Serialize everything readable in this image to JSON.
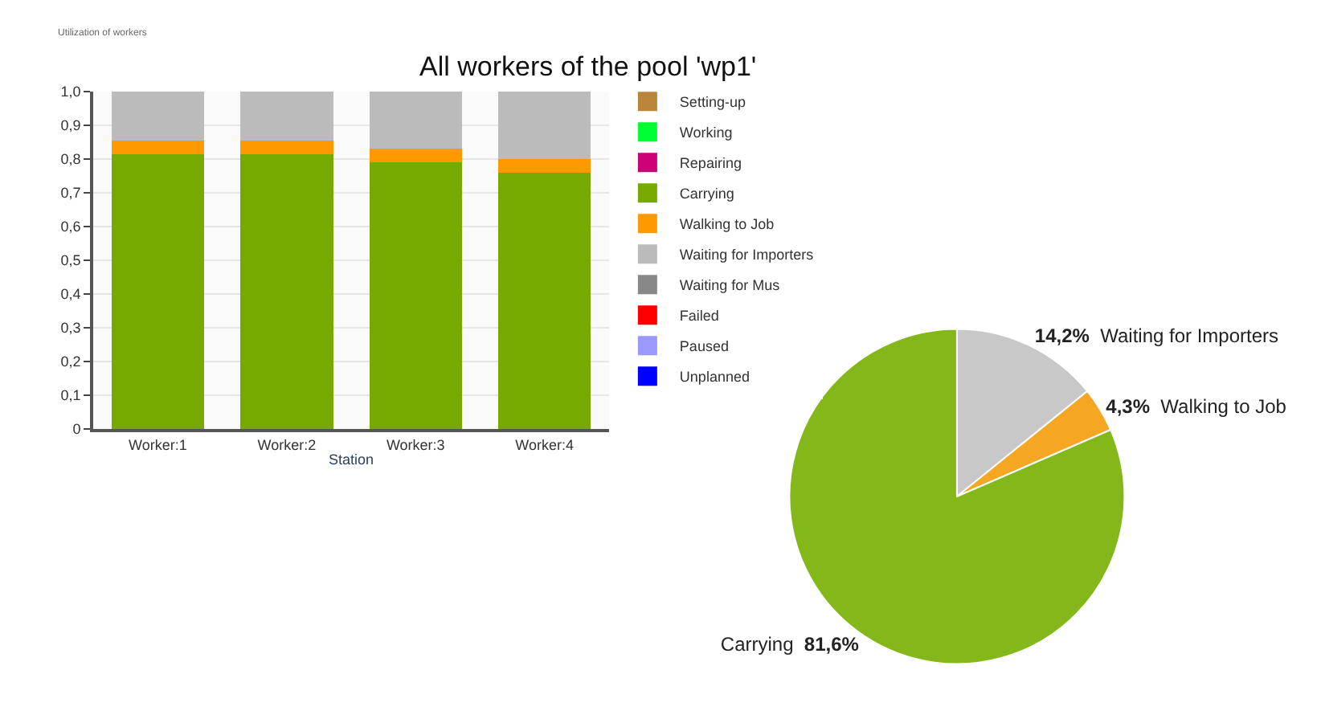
{
  "chart_data": [
    {
      "type": "bar",
      "title": "All workers of the pool 'wp1'",
      "xlabel": "Station",
      "annotations": [
        "Utilization of workers"
      ],
      "stacked": true,
      "grid": "y",
      "legend": "right",
      "categories": [
        "Worker:1",
        "Worker:2",
        "Worker:3",
        "Worker:4"
      ],
      "ylim": [
        0,
        1.0
      ],
      "yticks": [
        {
          "value": 0,
          "label": "0"
        },
        {
          "value": 0.1,
          "label": "0,1"
        },
        {
          "value": 0.2,
          "label": "0,2"
        },
        {
          "value": 0.3,
          "label": "0,3"
        },
        {
          "value": 0.4,
          "label": "0,4"
        },
        {
          "value": 0.5,
          "label": "0,5"
        },
        {
          "value": 0.6,
          "label": "0,6"
        },
        {
          "value": 0.7,
          "label": "0,7"
        },
        {
          "value": 0.8,
          "label": "0,8"
        },
        {
          "value": 0.9,
          "label": "0,9"
        },
        {
          "value": 1.0,
          "label": "1,0"
        }
      ],
      "series": [
        {
          "name": "Setting-up",
          "color": "#b8863b",
          "values": [
            0,
            0,
            0,
            0
          ]
        },
        {
          "name": "Working",
          "color": "#00ff33",
          "values": [
            0,
            0,
            0,
            0
          ]
        },
        {
          "name": "Repairing",
          "color": "#cc0077",
          "values": [
            0,
            0,
            0,
            0
          ]
        },
        {
          "name": "Carrying",
          "color": "#77aa00",
          "values": [
            0.815,
            0.815,
            0.79,
            0.76
          ]
        },
        {
          "name": "Walking to Job",
          "color": "#ff9900",
          "values": [
            0.04,
            0.04,
            0.04,
            0.04
          ]
        },
        {
          "name": "Waiting for Importers",
          "color": "#bbbbbb",
          "values": [
            0.145,
            0.145,
            0.17,
            0.2
          ]
        },
        {
          "name": "Waiting for Mus",
          "color": "#888888",
          "values": [
            0,
            0,
            0,
            0
          ]
        },
        {
          "name": "Failed",
          "color": "#ff0000",
          "values": [
            0,
            0,
            0,
            0
          ]
        },
        {
          "name": "Paused",
          "color": "#9999ff",
          "values": [
            0,
            0,
            0,
            0
          ]
        },
        {
          "name": "Unplanned",
          "color": "#0000ff",
          "values": [
            0,
            0,
            0,
            0
          ]
        }
      ]
    },
    {
      "type": "pie",
      "legend": false,
      "categories": [
        "Waiting for Importers",
        "Walking to Job",
        "Carrying"
      ],
      "values": [
        14.2,
        4.3,
        81.6
      ],
      "value_labels": [
        "14,2%",
        "4,3%",
        "81,6%"
      ],
      "colors": [
        "#c8c8c8",
        "#f5a623",
        "#84b81a"
      ]
    }
  ]
}
